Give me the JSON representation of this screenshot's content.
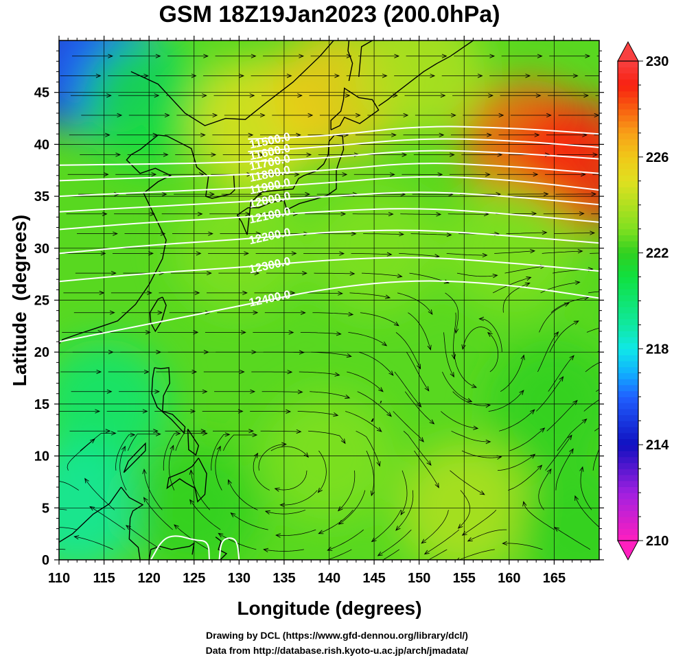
{
  "chart_data": {
    "type": "heatmap",
    "title": "GSM 18Z19Jan2023 (200.0hPa)",
    "xlabel": "Longitude (degrees)",
    "ylabel": "Latitude  (degrees)",
    "xlim": [
      110,
      170
    ],
    "ylim": [
      0,
      50
    ],
    "x_ticks": [
      110,
      115,
      120,
      125,
      130,
      135,
      140,
      145,
      150,
      155,
      160,
      165
    ],
    "y_ticks": [
      0,
      5,
      10,
      15,
      20,
      25,
      30,
      35,
      40,
      45
    ],
    "colorbar": {
      "range": [
        210,
        230
      ],
      "ticks": [
        210,
        214,
        218,
        222,
        226,
        230
      ],
      "colors": [
        {
          "v": 210,
          "c": "#ff1fbf"
        },
        {
          "v": 212,
          "c": "#a020e0"
        },
        {
          "v": 214,
          "c": "#1010c0"
        },
        {
          "v": 216,
          "c": "#2060ff"
        },
        {
          "v": 217,
          "c": "#10b0ff"
        },
        {
          "v": 218,
          "c": "#10e8e8"
        },
        {
          "v": 219,
          "c": "#10e8a0"
        },
        {
          "v": 221,
          "c": "#10e040"
        },
        {
          "v": 222,
          "c": "#30d020"
        },
        {
          "v": 223,
          "c": "#80e020"
        },
        {
          "v": 224,
          "c": "#b0e020"
        },
        {
          "v": 225,
          "c": "#e0e020"
        },
        {
          "v": 226,
          "c": "#f0c818"
        },
        {
          "v": 227,
          "c": "#f8a018"
        },
        {
          "v": 228,
          "c": "#f86010"
        },
        {
          "v": 229,
          "c": "#f82010"
        },
        {
          "v": 230,
          "c": "#f84040"
        }
      ]
    },
    "temperature_field": [
      {
        "lon": 110,
        "lat": 48,
        "value": 214
      },
      {
        "lon": 115,
        "lat": 47,
        "value": 216
      },
      {
        "lon": 120,
        "lat": 44,
        "value": 221
      },
      {
        "lon": 132,
        "lat": 42,
        "value": 225
      },
      {
        "lon": 141,
        "lat": 45,
        "value": 226
      },
      {
        "lon": 150,
        "lat": 47,
        "value": 224
      },
      {
        "lon": 162,
        "lat": 40,
        "value": 228
      },
      {
        "lon": 168,
        "lat": 38,
        "value": 229
      },
      {
        "lon": 160,
        "lat": 30,
        "value": 223
      },
      {
        "lon": 145,
        "lat": 30,
        "value": 223
      },
      {
        "lon": 130,
        "lat": 30,
        "value": 223
      },
      {
        "lon": 115,
        "lat": 15,
        "value": 220
      },
      {
        "lon": 112,
        "lat": 5,
        "value": 219
      },
      {
        "lon": 125,
        "lat": 5,
        "value": 222
      },
      {
        "lon": 140,
        "lat": 10,
        "value": 223
      },
      {
        "lon": 155,
        "lat": 5,
        "value": 224
      },
      {
        "lon": 165,
        "lat": 15,
        "value": 222
      },
      {
        "lon": 168,
        "lat": 3,
        "value": 222
      }
    ],
    "contours": [
      {
        "label": "11500.0",
        "label_lon": 133.5,
        "label_lat": 40.0,
        "points": [
          [
            131,
            40.5
          ],
          [
            140,
            40.8
          ],
          [
            150,
            41.8
          ],
          [
            160,
            41.6
          ],
          [
            170,
            41.0
          ]
        ]
      },
      {
        "label": "11600.0",
        "label_lon": 133.5,
        "label_lat": 38.9,
        "points": [
          [
            131,
            39.3
          ],
          [
            140,
            39.8
          ],
          [
            150,
            40.6
          ],
          [
            160,
            40.4
          ],
          [
            170,
            39.7
          ]
        ]
      },
      {
        "label": "11700.0",
        "label_lon": 133.5,
        "label_lat": 37.9,
        "points": [
          [
            110,
            38.0
          ],
          [
            120,
            38.1
          ],
          [
            131,
            38.3
          ],
          [
            140,
            38.7
          ],
          [
            150,
            39.5
          ],
          [
            160,
            39.2
          ],
          [
            170,
            38.6
          ]
        ]
      },
      {
        "label": "11800.0",
        "label_lon": 133.5,
        "label_lat": 36.8,
        "points": [
          [
            110,
            36.5
          ],
          [
            120,
            36.8
          ],
          [
            131,
            37.1
          ],
          [
            140,
            37.5
          ],
          [
            150,
            38.3
          ],
          [
            160,
            37.9
          ],
          [
            170,
            37.2
          ]
        ]
      },
      {
        "label": "11900.0",
        "label_lon": 133.5,
        "label_lat": 35.6,
        "points": [
          [
            110,
            35.0
          ],
          [
            120,
            35.4
          ],
          [
            131,
            35.8
          ],
          [
            140,
            36.3
          ],
          [
            150,
            37.0
          ],
          [
            160,
            36.6
          ],
          [
            170,
            35.6
          ]
        ]
      },
      {
        "label": "12000.0",
        "label_lon": 133.5,
        "label_lat": 34.3,
        "points": [
          [
            110,
            33.5
          ],
          [
            120,
            34.0
          ],
          [
            131,
            34.5
          ],
          [
            140,
            35.0
          ],
          [
            150,
            35.5
          ],
          [
            160,
            35.0
          ],
          [
            170,
            34.2
          ]
        ]
      },
      {
        "label": "12100.0",
        "label_lon": 133.5,
        "label_lat": 32.8,
        "points": [
          [
            110,
            31.8
          ],
          [
            120,
            32.5
          ],
          [
            131,
            33.0
          ],
          [
            140,
            33.6
          ],
          [
            150,
            33.9
          ],
          [
            160,
            33.3
          ],
          [
            170,
            32.5
          ]
        ]
      },
      {
        "label": "12200.0",
        "label_lon": 133.5,
        "label_lat": 30.8,
        "points": [
          [
            110,
            29.5
          ],
          [
            120,
            30.3
          ],
          [
            131,
            30.9
          ],
          [
            140,
            31.6
          ],
          [
            150,
            31.8
          ],
          [
            160,
            31.2
          ],
          [
            170,
            30.5
          ]
        ]
      },
      {
        "label": "12300.0",
        "label_lon": 133.5,
        "label_lat": 28.0,
        "points": [
          [
            110,
            26.8
          ],
          [
            120,
            27.6
          ],
          [
            131,
            28.2
          ],
          [
            140,
            28.9
          ],
          [
            150,
            29.2
          ],
          [
            160,
            28.6
          ],
          [
            170,
            27.8
          ]
        ]
      },
      {
        "label": "12400.0",
        "label_lon": 133.5,
        "label_lat": 24.8,
        "points": [
          [
            110,
            21.0
          ],
          [
            120,
            22.7
          ],
          [
            131,
            24.6
          ],
          [
            140,
            26.2
          ],
          [
            150,
            27.0
          ],
          [
            160,
            26.5
          ],
          [
            170,
            25.2
          ]
        ]
      },
      {
        "label": "",
        "label_lon": 0,
        "label_lat": 0,
        "points": [
          [
            120.2,
            0
          ],
          [
            121.5,
            2.0
          ],
          [
            123,
            2.4
          ],
          [
            125,
            1.9
          ],
          [
            126.6,
            1.8
          ],
          [
            126.7,
            0
          ]
        ]
      },
      {
        "label": "",
        "label_lon": 0,
        "label_lat": 0,
        "points": [
          [
            127.8,
            0
          ],
          [
            128,
            1.8
          ],
          [
            129,
            2.2
          ],
          [
            129.8,
            1.8
          ],
          [
            130,
            0
          ]
        ]
      }
    ],
    "wind_features": [
      {
        "name": "anticyclone",
        "lon": 157,
        "lat": 19
      },
      {
        "name": "westerly jet",
        "lat": 37
      }
    ]
  },
  "credits": {
    "line1": "Drawing by DCL (https://www.gfd-dennou.org/library/dcl/)",
    "line2": "Data from http://database.rish.kyoto-u.ac.jp/arch/jmadata/"
  }
}
